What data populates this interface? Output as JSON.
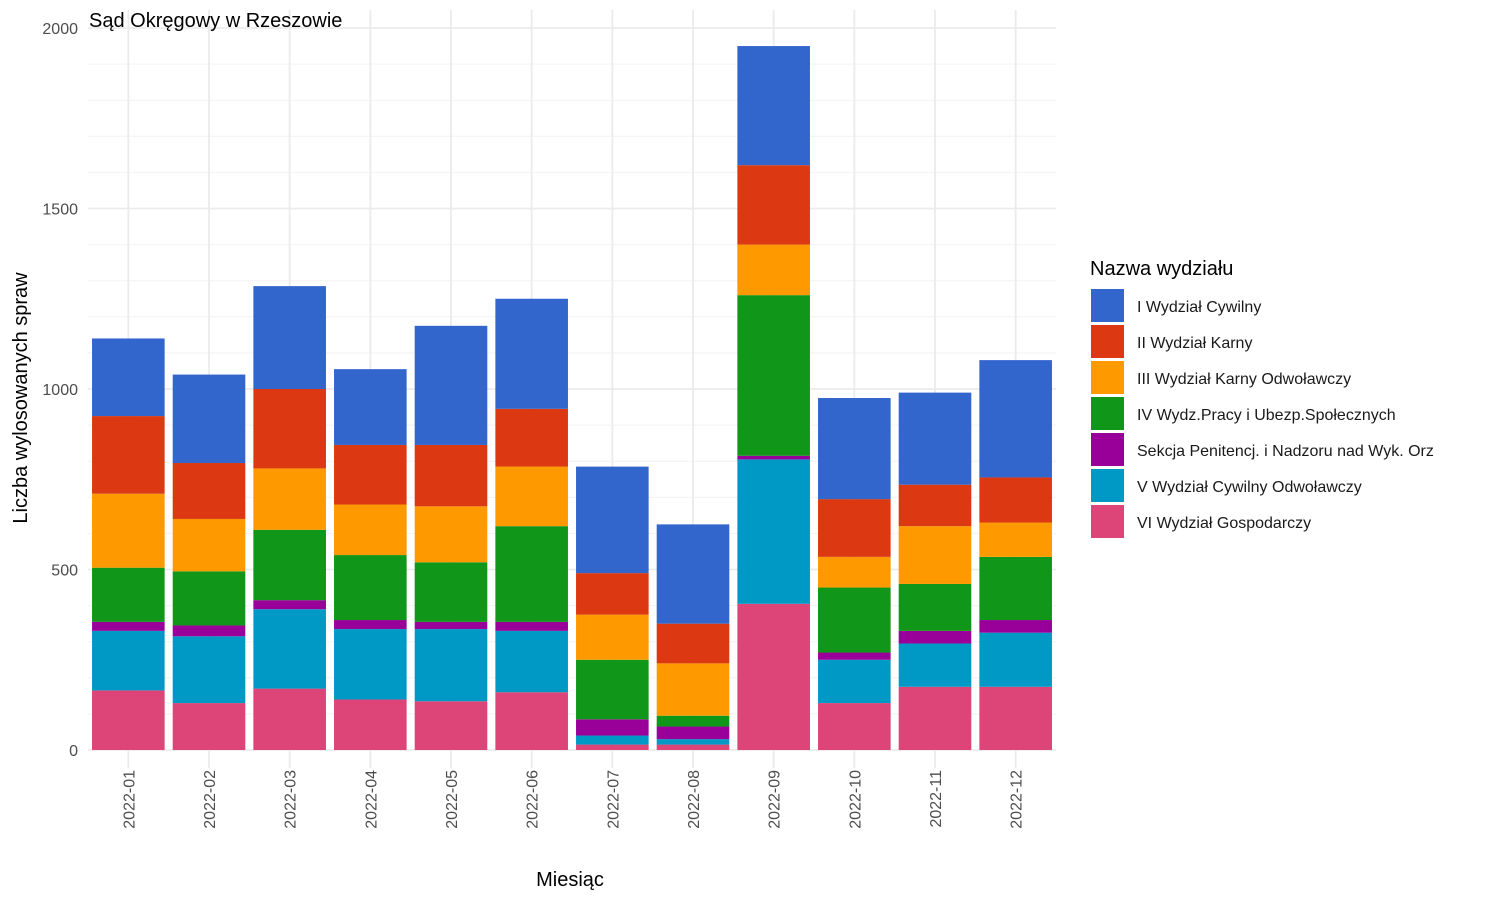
{
  "chart_data": {
    "type": "bar",
    "stacked": true,
    "title": "Sąd Okręgowy w Rzeszowie",
    "xlabel": "Miesiąc",
    "ylabel": "Liczba wylosowanych spraw",
    "ylim": [
      0,
      2000
    ],
    "yticks": [
      0,
      500,
      1000,
      1500,
      2000
    ],
    "grid": true,
    "legend_title": "Nazwa wydziału",
    "legend_position": "right",
    "categories": [
      "2022-01",
      "2022-02",
      "2022-03",
      "2022-04",
      "2022-05",
      "2022-06",
      "2022-07",
      "2022-08",
      "2022-09",
      "2022-10",
      "2022-11",
      "2022-12"
    ],
    "series": [
      {
        "name": "VI Wydział Gospodarczy",
        "color": "#DD4477",
        "values": [
          165,
          130,
          170,
          140,
          135,
          160,
          15,
          15,
          405,
          130,
          175,
          175
        ]
      },
      {
        "name": "V Wydział Cywilny Odwoławczy",
        "color": "#0099C6",
        "values": [
          165,
          185,
          220,
          195,
          200,
          170,
          25,
          15,
          400,
          120,
          120,
          150
        ]
      },
      {
        "name": "Sekcja Penitencj. i Nadzoru nad Wyk. Orz",
        "color": "#990099",
        "values": [
          25,
          30,
          25,
          25,
          20,
          25,
          45,
          35,
          10,
          20,
          35,
          35
        ]
      },
      {
        "name": "IV Wydz.Pracy i Ubezp.Społecznych",
        "color": "#109618",
        "values": [
          150,
          150,
          195,
          180,
          165,
          265,
          165,
          30,
          445,
          180,
          130,
          175
        ]
      },
      {
        "name": "III Wydział Karny Odwoławczy",
        "color": "#FF9900",
        "values": [
          205,
          145,
          170,
          140,
          155,
          165,
          125,
          145,
          140,
          85,
          160,
          95
        ]
      },
      {
        "name": "II Wydział Karny",
        "color": "#DC3912",
        "values": [
          215,
          155,
          220,
          165,
          170,
          160,
          115,
          110,
          220,
          160,
          115,
          125
        ]
      },
      {
        "name": "I Wydział Cywilny",
        "color": "#3366CC",
        "values": [
          215,
          245,
          285,
          210,
          330,
          305,
          295,
          275,
          330,
          280,
          255,
          325
        ]
      }
    ]
  },
  "legend_order": [
    "I Wydział Cywilny",
    "II Wydział Karny",
    "III Wydział Karny Odwoławczy",
    "IV Wydz.Pracy i Ubezp.Społecznych",
    "Sekcja Penitencj. i Nadzoru nad Wyk. Orz",
    "V Wydział Cywilny Odwoławczy",
    "VI Wydział Gospodarczy"
  ]
}
